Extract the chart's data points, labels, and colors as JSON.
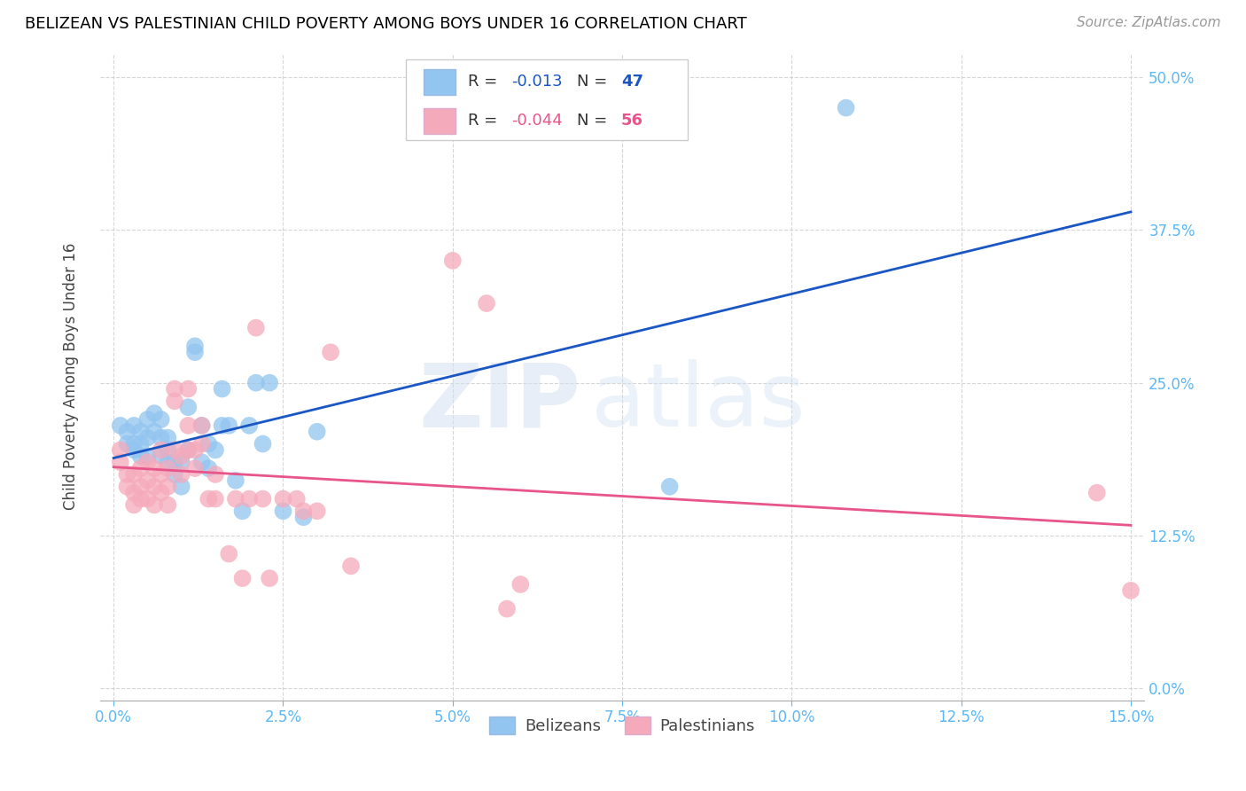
{
  "title": "BELIZEAN VS PALESTINIAN CHILD POVERTY AMONG BOYS UNDER 16 CORRELATION CHART",
  "source": "Source: ZipAtlas.com",
  "xlabel_ticks": [
    "0.0%",
    "2.5%",
    "5.0%",
    "7.5%",
    "10.0%",
    "12.5%",
    "15.0%"
  ],
  "xlabel_vals": [
    0.0,
    0.025,
    0.05,
    0.075,
    0.1,
    0.125,
    0.15
  ],
  "ylabel_ticks": [
    "0.0%",
    "12.5%",
    "25.0%",
    "37.5%",
    "50.0%"
  ],
  "ylabel_vals": [
    0.0,
    0.125,
    0.25,
    0.375,
    0.5
  ],
  "xlim": [
    -0.002,
    0.152
  ],
  "ylim": [
    -0.01,
    0.52
  ],
  "watermark_zip": "ZIP",
  "watermark_atlas": "atlas",
  "legend_r_blue": "-0.013",
  "legend_n_blue": "47",
  "legend_r_pink": "-0.044",
  "legend_n_pink": "56",
  "blue_color": "#92C5F0",
  "pink_color": "#F5AABB",
  "line_blue": "#1A56C4",
  "line_pink": "#E8558A",
  "belizeans_x": [
    0.001,
    0.002,
    0.002,
    0.003,
    0.003,
    0.003,
    0.004,
    0.004,
    0.004,
    0.005,
    0.005,
    0.005,
    0.006,
    0.006,
    0.007,
    0.007,
    0.007,
    0.008,
    0.008,
    0.008,
    0.009,
    0.009,
    0.01,
    0.01,
    0.011,
    0.011,
    0.012,
    0.012,
    0.013,
    0.013,
    0.014,
    0.014,
    0.015,
    0.016,
    0.016,
    0.017,
    0.018,
    0.019,
    0.02,
    0.021,
    0.022,
    0.023,
    0.025,
    0.028,
    0.03,
    0.082,
    0.108
  ],
  "belizeans_y": [
    0.215,
    0.21,
    0.2,
    0.215,
    0.2,
    0.195,
    0.21,
    0.2,
    0.19,
    0.22,
    0.205,
    0.19,
    0.225,
    0.21,
    0.22,
    0.205,
    0.19,
    0.205,
    0.195,
    0.185,
    0.185,
    0.175,
    0.185,
    0.165,
    0.23,
    0.195,
    0.28,
    0.275,
    0.215,
    0.185,
    0.2,
    0.18,
    0.195,
    0.245,
    0.215,
    0.215,
    0.17,
    0.145,
    0.215,
    0.25,
    0.2,
    0.25,
    0.145,
    0.14,
    0.21,
    0.165,
    0.475
  ],
  "palestinians_x": [
    0.001,
    0.001,
    0.002,
    0.002,
    0.003,
    0.003,
    0.003,
    0.004,
    0.004,
    0.004,
    0.005,
    0.005,
    0.005,
    0.006,
    0.006,
    0.006,
    0.007,
    0.007,
    0.007,
    0.008,
    0.008,
    0.008,
    0.009,
    0.009,
    0.009,
    0.01,
    0.01,
    0.011,
    0.011,
    0.011,
    0.012,
    0.012,
    0.013,
    0.013,
    0.014,
    0.015,
    0.015,
    0.017,
    0.018,
    0.019,
    0.02,
    0.021,
    0.022,
    0.023,
    0.025,
    0.027,
    0.028,
    0.03,
    0.032,
    0.035,
    0.05,
    0.055,
    0.058,
    0.06,
    0.145,
    0.15
  ],
  "palestinians_y": [
    0.195,
    0.185,
    0.175,
    0.165,
    0.175,
    0.16,
    0.15,
    0.18,
    0.165,
    0.155,
    0.185,
    0.17,
    0.155,
    0.18,
    0.165,
    0.15,
    0.195,
    0.175,
    0.16,
    0.18,
    0.165,
    0.15,
    0.245,
    0.235,
    0.195,
    0.19,
    0.175,
    0.245,
    0.215,
    0.195,
    0.195,
    0.18,
    0.215,
    0.2,
    0.155,
    0.175,
    0.155,
    0.11,
    0.155,
    0.09,
    0.155,
    0.295,
    0.155,
    0.09,
    0.155,
    0.155,
    0.145,
    0.145,
    0.275,
    0.1,
    0.35,
    0.315,
    0.065,
    0.085,
    0.16,
    0.08
  ]
}
